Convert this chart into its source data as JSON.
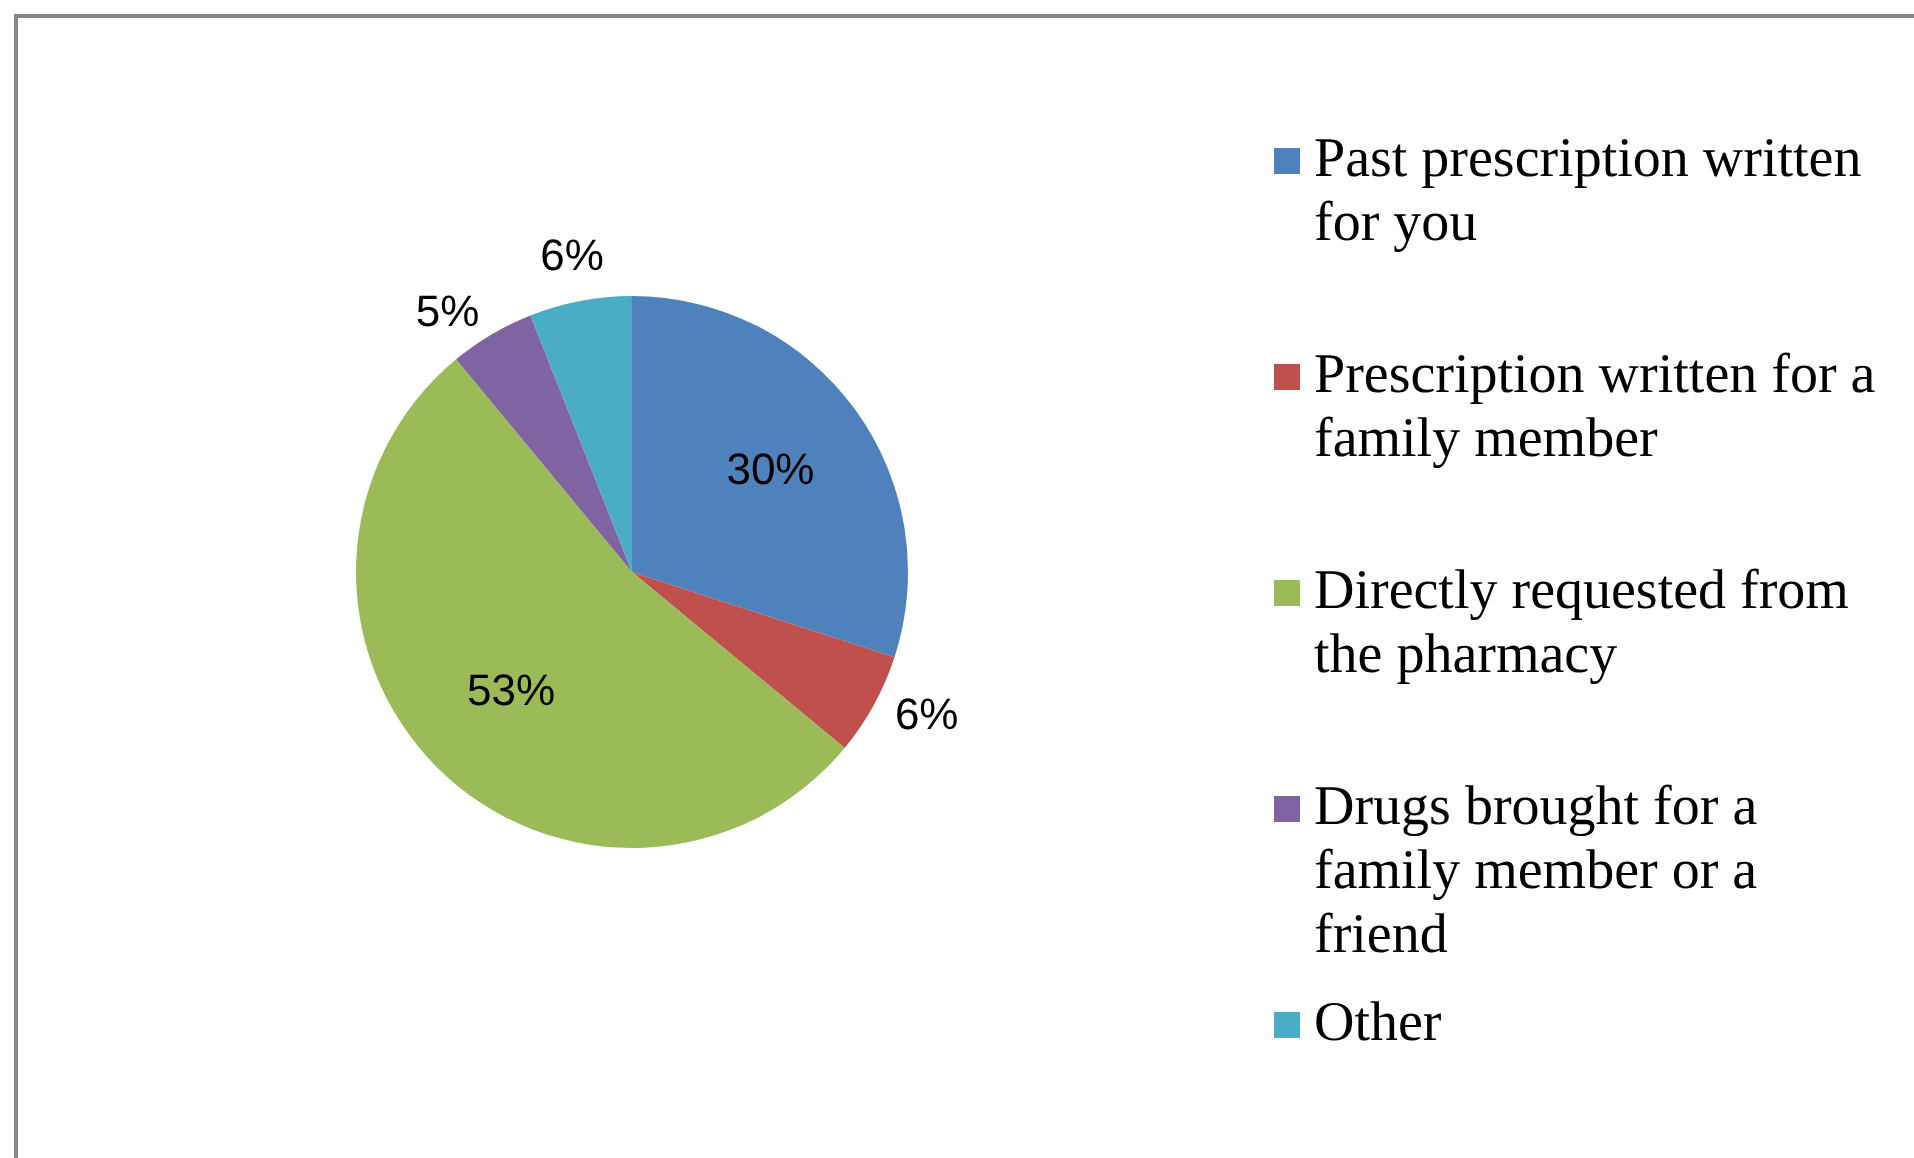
{
  "chart_data": {
    "type": "pie",
    "categories": [
      "Past prescription written for you",
      "Prescription written for a family member",
      "Directly requested from the pharmacy",
      "Drugs brought for a family member or a friend",
      "Other"
    ],
    "values": [
      30,
      6,
      53,
      5,
      6
    ],
    "colors": [
      "#4f81bd",
      "#c0504d",
      "#9bbb59",
      "#8064a2",
      "#4bacc6"
    ],
    "value_labels": [
      "30%",
      "6%",
      "53%",
      "5%",
      "6%"
    ],
    "legend": "right"
  }
}
